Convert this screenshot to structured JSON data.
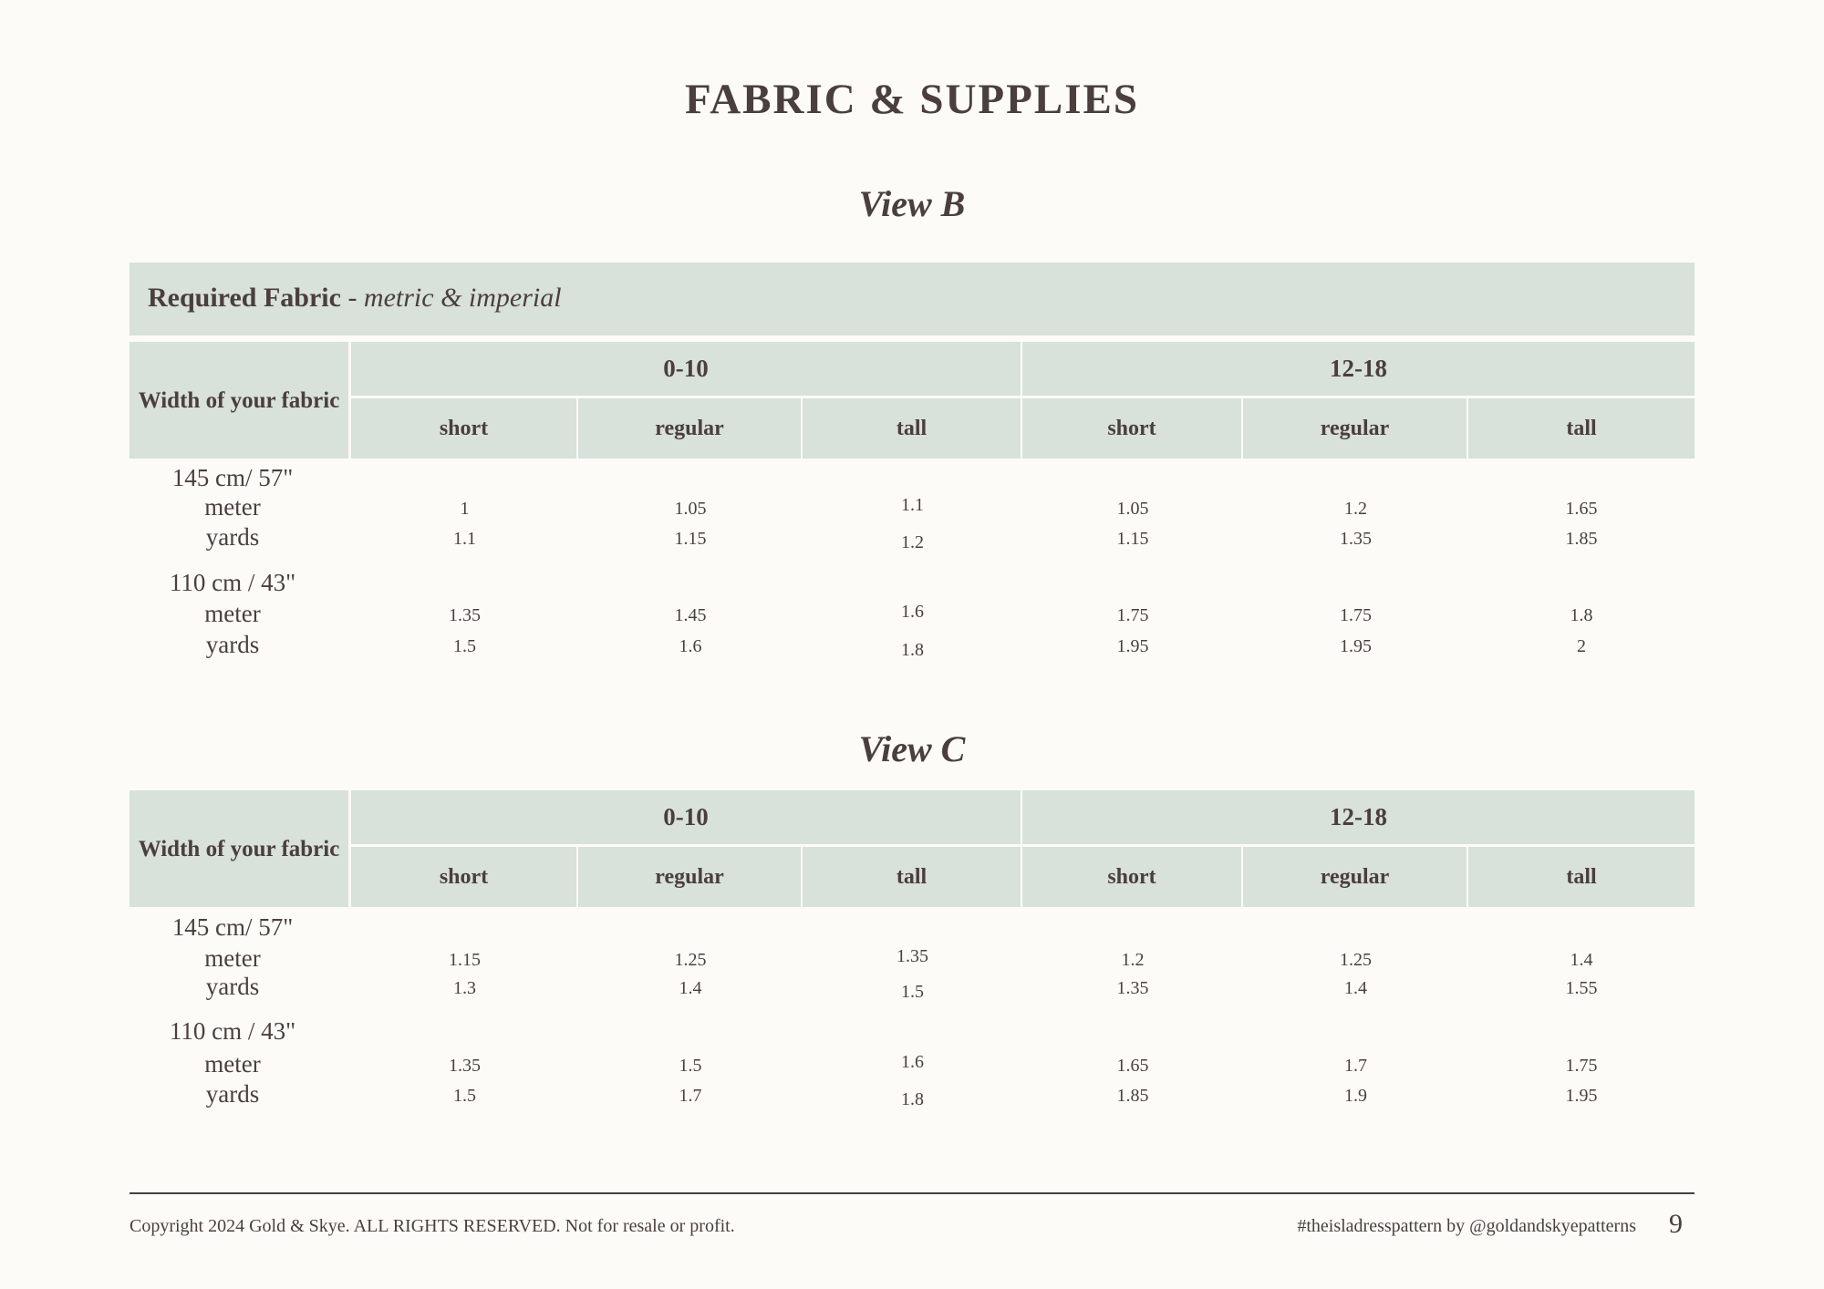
{
  "page_title": "FABRIC & SUPPLIES",
  "required_fabric": {
    "label": "Required Fabric",
    "suffix": " - metric & imperial"
  },
  "colors": {
    "header_bg": "#d8e1da",
    "text": "#4a3f3d",
    "page_bg": "#fcfbf8"
  },
  "tables": [
    {
      "view": "View B",
      "row_header": "Width of your fabric",
      "size_groups": [
        "0-10",
        "12-18"
      ],
      "heights": [
        "short",
        "regular",
        "tall",
        "short",
        "regular",
        "tall"
      ],
      "widths": [
        {
          "label": "145 cm/ 57\"",
          "rows": [
            {
              "unit": "meter",
              "values": [
                "1",
                "1.05",
                "1.1",
                "1.05",
                "1.2",
                "1.65"
              ]
            },
            {
              "unit": "yards",
              "values": [
                "1.1",
                "1.15",
                "1.2",
                "1.15",
                "1.35",
                "1.85"
              ]
            }
          ]
        },
        {
          "label": "110 cm / 43\"",
          "rows": [
            {
              "unit": "meter",
              "values": [
                "1.35",
                "1.45",
                "1.6",
                "1.75",
                "1.75",
                "1.8"
              ]
            },
            {
              "unit": "yards",
              "values": [
                "1.5",
                "1.6",
                "1.8",
                "1.95",
                "1.95",
                "2"
              ]
            }
          ]
        }
      ]
    },
    {
      "view": "View C",
      "row_header": "Width of your fabric",
      "size_groups": [
        "0-10",
        "12-18"
      ],
      "heights": [
        "short",
        "regular",
        "tall",
        "short",
        "regular",
        "tall"
      ],
      "widths": [
        {
          "label": "145 cm/ 57\"",
          "rows": [
            {
              "unit": "meter",
              "values": [
                "1.15",
                "1.25",
                "1.35",
                "1.2",
                "1.25",
                "1.4"
              ]
            },
            {
              "unit": "yards",
              "values": [
                "1.3",
                "1.4",
                "1.5",
                "1.35",
                "1.4",
                "1.55"
              ]
            }
          ]
        },
        {
          "label": "110 cm / 43\"",
          "rows": [
            {
              "unit": "meter",
              "values": [
                "1.35",
                "1.5",
                "1.6",
                "1.65",
                "1.7",
                "1.75"
              ]
            },
            {
              "unit": "yards",
              "values": [
                "1.5",
                "1.7",
                "1.8",
                "1.85",
                "1.9",
                "1.95"
              ]
            }
          ]
        }
      ]
    }
  ],
  "footer": {
    "copyright": "Copyright 2024 Gold & Skye. ALL RIGHTS RESERVED. Not for resale or profit.",
    "hashtag": "#theisladresspattern by @goldandskyepatterns",
    "page_number": "9"
  }
}
